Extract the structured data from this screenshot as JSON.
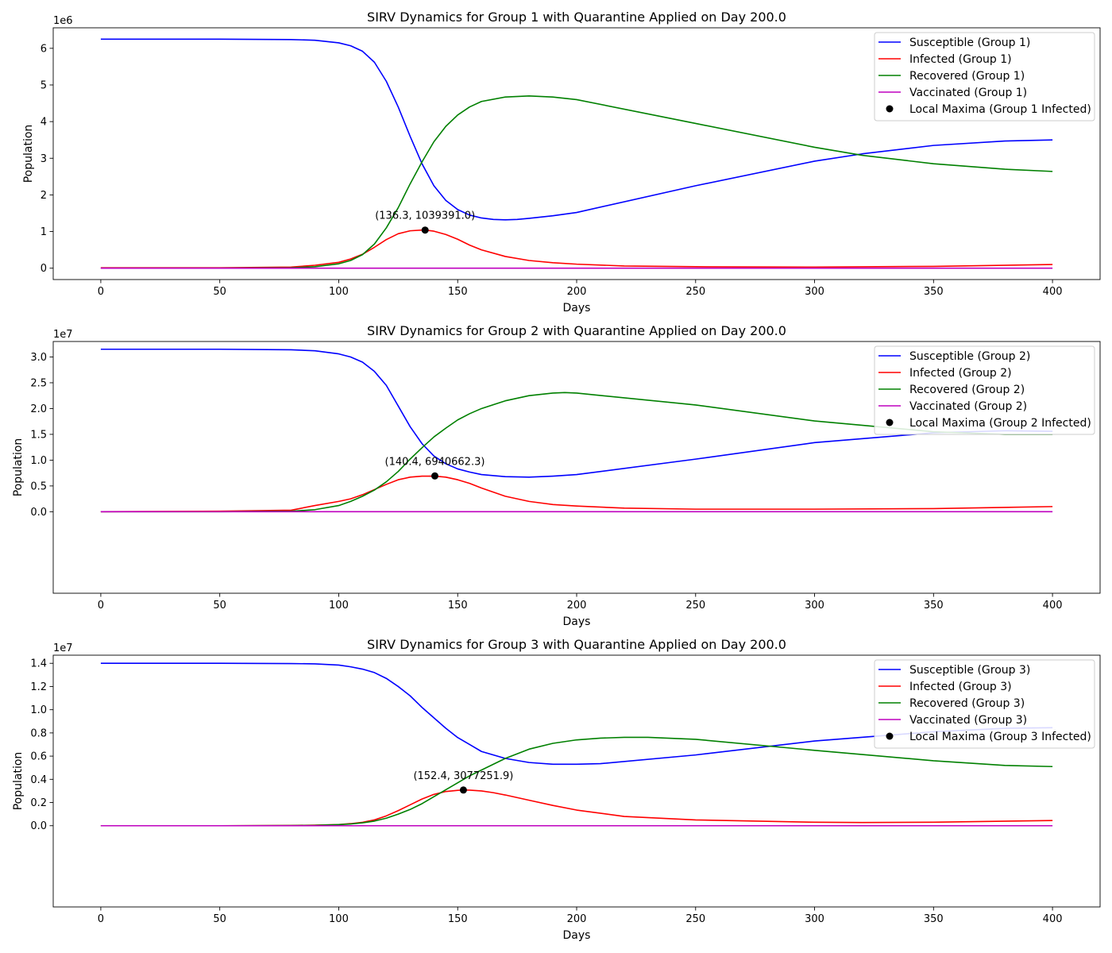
{
  "chart_data": [
    {
      "type": "line",
      "title": "SIRV Dynamics for Group 1 with Quarantine Applied on Day 200.0",
      "xlabel": "Days",
      "ylabel": "Population",
      "offset_label": "1e6",
      "xlim": [
        -20,
        420
      ],
      "ylim": [
        -0.31,
        6.56
      ],
      "x_ticks": [
        0,
        50,
        100,
        150,
        200,
        250,
        300,
        350,
        400
      ],
      "y_ticks": [
        0,
        1,
        2,
        3,
        4,
        5,
        6
      ],
      "y_tick_labels": [
        "0",
        "1",
        "2",
        "3",
        "4",
        "5",
        "6"
      ],
      "grid": false,
      "legend_position": "top-right",
      "series": [
        {
          "name": "Susceptible (Group 1)",
          "color": "#0000ff",
          "x": [
            0,
            50,
            80,
            90,
            100,
            105,
            110,
            115,
            120,
            125,
            130,
            135,
            140,
            145,
            150,
            155,
            160,
            165,
            170,
            175,
            180,
            190,
            200,
            250,
            300,
            320,
            350,
            380,
            400
          ],
          "y": [
            6.25,
            6.25,
            6.24,
            6.22,
            6.15,
            6.07,
            5.92,
            5.62,
            5.1,
            4.4,
            3.6,
            2.85,
            2.25,
            1.85,
            1.6,
            1.45,
            1.37,
            1.33,
            1.32,
            1.33,
            1.36,
            1.43,
            1.52,
            2.25,
            2.92,
            3.12,
            3.35,
            3.47,
            3.5
          ]
        },
        {
          "name": "Infected (Group 1)",
          "color": "#ff0000",
          "x": [
            0,
            50,
            80,
            90,
            100,
            105,
            110,
            115,
            120,
            125,
            130,
            135,
            136.3,
            140,
            145,
            150,
            155,
            160,
            170,
            180,
            190,
            200,
            220,
            250,
            300,
            350,
            400
          ],
          "y": [
            0.01,
            0.01,
            0.03,
            0.08,
            0.16,
            0.25,
            0.38,
            0.57,
            0.78,
            0.94,
            1.02,
            1.04,
            1.04,
            1.01,
            0.92,
            0.79,
            0.63,
            0.5,
            0.32,
            0.21,
            0.15,
            0.11,
            0.06,
            0.04,
            0.03,
            0.05,
            0.1
          ]
        },
        {
          "name": "Recovered (Group 1)",
          "color": "#008000",
          "x": [
            0,
            50,
            80,
            90,
            100,
            105,
            110,
            115,
            120,
            125,
            130,
            135,
            140,
            145,
            150,
            155,
            160,
            170,
            180,
            190,
            200,
            250,
            300,
            320,
            350,
            380,
            400
          ],
          "y": [
            0,
            0,
            0.01,
            0.04,
            0.12,
            0.21,
            0.37,
            0.66,
            1.1,
            1.65,
            2.3,
            2.9,
            3.45,
            3.87,
            4.18,
            4.4,
            4.55,
            4.67,
            4.7,
            4.67,
            4.6,
            3.95,
            3.3,
            3.08,
            2.85,
            2.7,
            2.64
          ]
        },
        {
          "name": "Vaccinated (Group 1)",
          "color": "#bf00bf",
          "x": [
            0,
            400
          ],
          "y": [
            0,
            0
          ]
        }
      ],
      "maxima": {
        "name": "Local Maxima (Group 1 Infected)",
        "x": 136.3,
        "y": 1039391.0,
        "label": "(136.3, 1039391.0)"
      }
    },
    {
      "type": "line",
      "title": "SIRV Dynamics for Group 2 with Quarantine Applied on Day 200.0",
      "xlabel": "Days",
      "ylabel": "Population",
      "offset_label": "1e7",
      "xlim": [
        -20,
        420
      ],
      "ylim": [
        -1.58,
        3.3
      ],
      "x_ticks": [
        0,
        50,
        100,
        150,
        200,
        250,
        300,
        350,
        400
      ],
      "y_ticks": [
        0,
        0.5,
        1.0,
        1.5,
        2.0,
        2.5,
        3.0
      ],
      "y_tick_labels": [
        "0.0",
        "0.5",
        "1.0",
        "1.5",
        "2.0",
        "2.5",
        "3.0"
      ],
      "grid": false,
      "legend_position": "top-right",
      "series": [
        {
          "name": "Susceptible (Group 2)",
          "color": "#0000ff",
          "x": [
            0,
            50,
            80,
            90,
            100,
            105,
            110,
            115,
            120,
            125,
            130,
            135,
            140,
            145,
            150,
            155,
            160,
            170,
            180,
            190,
            200,
            250,
            300,
            350,
            380,
            400
          ],
          "y": [
            3.15,
            3.15,
            3.14,
            3.12,
            3.06,
            3.0,
            2.9,
            2.72,
            2.45,
            2.05,
            1.65,
            1.32,
            1.08,
            0.93,
            0.83,
            0.77,
            0.72,
            0.68,
            0.67,
            0.69,
            0.72,
            1.02,
            1.34,
            1.53,
            1.57,
            1.56
          ]
        },
        {
          "name": "Infected (Group 2)",
          "color": "#ff0000",
          "x": [
            0,
            50,
            80,
            90,
            100,
            105,
            110,
            115,
            120,
            125,
            130,
            135,
            140.4,
            145,
            150,
            155,
            160,
            170,
            180,
            190,
            200,
            220,
            250,
            300,
            350,
            400
          ],
          "y": [
            0,
            0.01,
            0.03,
            0.12,
            0.2,
            0.25,
            0.33,
            0.43,
            0.53,
            0.62,
            0.67,
            0.69,
            0.69,
            0.67,
            0.62,
            0.55,
            0.46,
            0.3,
            0.2,
            0.14,
            0.11,
            0.07,
            0.05,
            0.05,
            0.06,
            0.1
          ]
        },
        {
          "name": "Recovered (Group 2)",
          "color": "#008000",
          "x": [
            0,
            50,
            80,
            90,
            100,
            105,
            110,
            115,
            120,
            125,
            130,
            135,
            140,
            145,
            150,
            155,
            160,
            170,
            180,
            190,
            195,
            200,
            250,
            300,
            350,
            380,
            400
          ],
          "y": [
            0,
            0,
            0.01,
            0.04,
            0.12,
            0.2,
            0.3,
            0.42,
            0.58,
            0.78,
            1.02,
            1.24,
            1.45,
            1.62,
            1.78,
            1.9,
            2.0,
            2.15,
            2.25,
            2.3,
            2.31,
            2.3,
            2.07,
            1.76,
            1.55,
            1.5,
            1.5
          ]
        },
        {
          "name": "Vaccinated (Group 2)",
          "color": "#bf00bf",
          "x": [
            0,
            400
          ],
          "y": [
            0,
            0
          ]
        }
      ],
      "maxima": {
        "name": "Local Maxima (Group 2 Infected)",
        "x": 140.4,
        "y": 6940662.3,
        "label": "(140.4, 6940662.3)"
      }
    },
    {
      "type": "line",
      "title": "SIRV Dynamics for Group 3 with Quarantine Applied on Day 200.0",
      "xlabel": "Days",
      "ylabel": "Population",
      "offset_label": "1e7",
      "xlim": [
        -20,
        420
      ],
      "ylim": [
        -0.7,
        1.47
      ],
      "x_ticks": [
        0,
        50,
        100,
        150,
        200,
        250,
        300,
        350,
        400
      ],
      "y_ticks": [
        0,
        0.2,
        0.4,
        0.6,
        0.8,
        1.0,
        1.2,
        1.4
      ],
      "y_tick_labels": [
        "0.0",
        "0.2",
        "0.4",
        "0.6",
        "0.8",
        "1.0",
        "1.2",
        "1.4"
      ],
      "grid": false,
      "legend_position": "top-right",
      "series": [
        {
          "name": "Susceptible (Group 3)",
          "color": "#0000ff",
          "x": [
            0,
            50,
            80,
            90,
            100,
            105,
            110,
            115,
            120,
            125,
            130,
            135,
            140,
            145,
            150,
            155,
            160,
            170,
            180,
            190,
            200,
            210,
            250,
            300,
            350,
            380,
            400
          ],
          "y": [
            1.4,
            1.4,
            1.398,
            1.395,
            1.385,
            1.37,
            1.35,
            1.32,
            1.27,
            1.2,
            1.12,
            1.02,
            0.93,
            0.84,
            0.76,
            0.7,
            0.64,
            0.58,
            0.545,
            0.53,
            0.53,
            0.535,
            0.61,
            0.73,
            0.81,
            0.84,
            0.845
          ]
        },
        {
          "name": "Infected (Group 3)",
          "color": "#ff0000",
          "x": [
            0,
            50,
            80,
            90,
            100,
            105,
            110,
            115,
            120,
            125,
            130,
            135,
            140,
            145,
            150,
            152.4,
            155,
            160,
            165,
            170,
            180,
            190,
            200,
            220,
            250,
            300,
            320,
            350,
            400
          ],
          "y": [
            0,
            0,
            0.002,
            0.005,
            0.01,
            0.018,
            0.03,
            0.05,
            0.085,
            0.13,
            0.18,
            0.23,
            0.27,
            0.295,
            0.305,
            0.308,
            0.307,
            0.3,
            0.285,
            0.265,
            0.22,
            0.175,
            0.135,
            0.08,
            0.05,
            0.03,
            0.028,
            0.03,
            0.045
          ]
        },
        {
          "name": "Recovered (Group 3)",
          "color": "#008000",
          "x": [
            0,
            50,
            80,
            90,
            100,
            105,
            110,
            115,
            120,
            125,
            130,
            135,
            140,
            145,
            150,
            155,
            160,
            170,
            180,
            190,
            200,
            210,
            220,
            230,
            250,
            300,
            350,
            380,
            400
          ],
          "y": [
            0,
            0,
            0.001,
            0.003,
            0.01,
            0.015,
            0.025,
            0.04,
            0.065,
            0.1,
            0.14,
            0.19,
            0.25,
            0.31,
            0.37,
            0.43,
            0.48,
            0.58,
            0.66,
            0.71,
            0.74,
            0.755,
            0.762,
            0.762,
            0.745,
            0.65,
            0.56,
            0.52,
            0.51
          ]
        },
        {
          "name": "Vaccinated (Group 3)",
          "color": "#bf00bf",
          "x": [
            0,
            400
          ],
          "y": [
            0,
            0
          ]
        }
      ],
      "maxima": {
        "name": "Local Maxima (Group 3 Infected)",
        "x": 152.4,
        "y": 3077251.9,
        "label": "(152.4, 3077251.9)"
      }
    }
  ]
}
